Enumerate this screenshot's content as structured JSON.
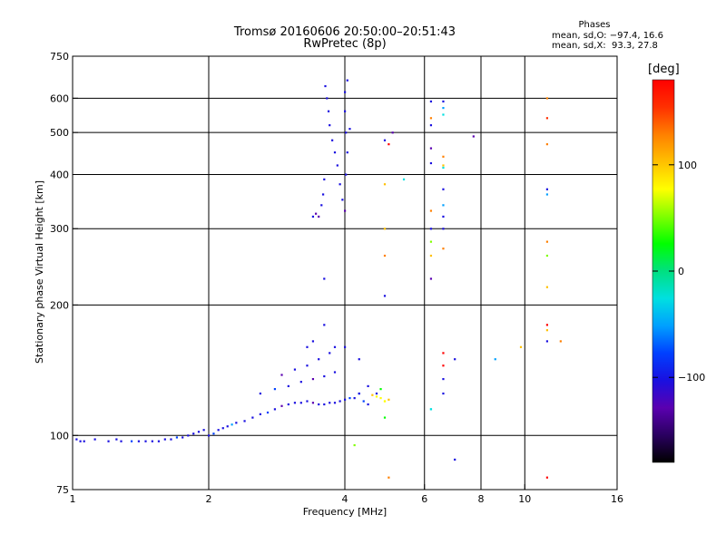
{
  "header": {
    "title_line1": "Tromsø 20160606 20:50:00–20:51:43",
    "title_line2": "RwPretec (8p)",
    "phases_title": "Phases",
    "phases_o": "mean, sd,O: −97.4, 16.6",
    "phases_x": "mean, sd,X:  93.3, 27.8"
  },
  "colorbar": {
    "title": "[deg]",
    "ticks": [
      "100",
      "0",
      "−100"
    ],
    "tick_values": [
      100,
      0,
      -100
    ],
    "range": [
      -180,
      180
    ],
    "colors": [
      "#000000",
      "#2a0060",
      "#5a00b0",
      "#1a10e0",
      "#0040ff",
      "#00a0ff",
      "#00e0e0",
      "#00e080",
      "#00ff00",
      "#80ff00",
      "#ffff00",
      "#ffc000",
      "#ff8000",
      "#ff3000",
      "#ff0000"
    ]
  },
  "chart_data": {
    "type": "scatter",
    "xlabel": "Frequency [MHz]",
    "ylabel": "Stationary phase Virtual Height [km]",
    "x_scale": "log",
    "y_scale": "log",
    "xlim": [
      1,
      16
    ],
    "ylim": [
      75,
      750
    ],
    "x_ticks": [
      1,
      2,
      4,
      8,
      16
    ],
    "x_minor_ticks": [
      6,
      10
    ],
    "y_ticks": [
      75,
      100,
      200,
      300,
      400,
      500,
      600,
      750
    ],
    "grid": true,
    "grid_verticals": [
      2,
      4,
      6,
      8,
      10
    ],
    "grid_horizontals": [
      100,
      200,
      300,
      400,
      500,
      600
    ],
    "series": [
      {
        "points": [
          [
            1.02,
            98,
            -110
          ],
          [
            1.04,
            97,
            -100
          ],
          [
            1.06,
            97,
            -95
          ],
          [
            1.12,
            98,
            -105
          ],
          [
            1.2,
            97,
            -110
          ],
          [
            1.25,
            98,
            -100
          ],
          [
            1.28,
            97,
            -115
          ],
          [
            1.35,
            97,
            -90
          ],
          [
            1.4,
            97,
            -100
          ],
          [
            1.45,
            97,
            -108
          ],
          [
            1.5,
            97,
            -95
          ],
          [
            1.55,
            97,
            -105
          ],
          [
            1.6,
            98,
            -100
          ],
          [
            1.65,
            98,
            -110
          ],
          [
            1.7,
            99,
            -90
          ],
          [
            1.75,
            99,
            -100
          ],
          [
            1.8,
            100,
            -105
          ],
          [
            1.85,
            101,
            -95
          ],
          [
            1.9,
            102,
            -100
          ],
          [
            1.95,
            103,
            -115
          ],
          [
            2.0,
            100,
            -100
          ],
          [
            2.05,
            101,
            -80
          ],
          [
            2.1,
            103,
            -100
          ],
          [
            2.15,
            104,
            -105
          ],
          [
            2.2,
            105,
            -95
          ],
          [
            2.25,
            106,
            -60
          ],
          [
            2.3,
            107,
            -100
          ],
          [
            2.4,
            108,
            -110
          ],
          [
            2.5,
            110,
            -95
          ],
          [
            2.6,
            112,
            -100
          ],
          [
            2.7,
            113,
            -70
          ],
          [
            2.8,
            115,
            -105
          ],
          [
            2.9,
            117,
            -130
          ],
          [
            3.0,
            118,
            -100
          ],
          [
            3.1,
            119,
            -110
          ],
          [
            3.2,
            119,
            -95
          ],
          [
            3.3,
            120,
            -100
          ],
          [
            3.4,
            119,
            -130
          ],
          [
            3.5,
            118,
            -100
          ],
          [
            3.6,
            118,
            -110
          ],
          [
            3.7,
            119,
            -95
          ],
          [
            3.8,
            119,
            -100
          ],
          [
            3.9,
            120,
            -105
          ],
          [
            4.0,
            121,
            -95
          ],
          [
            4.1,
            122,
            -90
          ],
          [
            4.2,
            122,
            -100
          ],
          [
            4.3,
            125,
            -80
          ],
          [
            2.6,
            125,
            -100
          ],
          [
            2.8,
            128,
            -70
          ],
          [
            3.0,
            130,
            -110
          ],
          [
            3.2,
            133,
            -100
          ],
          [
            3.4,
            135,
            -120
          ],
          [
            3.6,
            137,
            -100
          ],
          [
            3.8,
            140,
            -95
          ],
          [
            2.9,
            138,
            -130
          ],
          [
            3.1,
            142,
            -100
          ],
          [
            3.3,
            145,
            -110
          ],
          [
            3.5,
            150,
            -95
          ],
          [
            3.7,
            155,
            -100
          ],
          [
            3.6,
            180,
            -100
          ],
          [
            3.3,
            160,
            -95
          ],
          [
            3.4,
            165,
            -100
          ],
          [
            3.8,
            160,
            -110
          ],
          [
            4.0,
            160,
            -100
          ],
          [
            4.3,
            150,
            -100
          ],
          [
            4.0,
            330,
            -120
          ],
          [
            3.95,
            350,
            -100
          ],
          [
            3.9,
            380,
            -110
          ],
          [
            3.85,
            420,
            -100
          ],
          [
            3.8,
            450,
            -105
          ],
          [
            3.75,
            480,
            -110
          ],
          [
            3.7,
            520,
            -100
          ],
          [
            3.68,
            560,
            -95
          ],
          [
            3.65,
            600,
            -100
          ],
          [
            3.62,
            640,
            -110
          ],
          [
            3.5,
            320,
            -130
          ],
          [
            3.55,
            340,
            -110
          ],
          [
            3.58,
            360,
            -100
          ],
          [
            3.6,
            390,
            -95
          ],
          [
            3.45,
            325,
            -120
          ],
          [
            3.4,
            320,
            -110
          ],
          [
            4.02,
            400,
            -100
          ],
          [
            4.05,
            450,
            -100
          ],
          [
            4.02,
            500,
            -110
          ],
          [
            4.0,
            560,
            -100
          ],
          [
            4.0,
            620,
            -100
          ],
          [
            4.05,
            660,
            -100
          ],
          [
            3.6,
            230,
            -100
          ],
          [
            4.9,
            120,
            80
          ],
          [
            5.0,
            121,
            90
          ],
          [
            4.8,
            122,
            85
          ],
          [
            4.7,
            123,
            75
          ],
          [
            4.6,
            124,
            90
          ],
          [
            4.5,
            118,
            -100
          ],
          [
            4.4,
            120,
            -80
          ],
          [
            4.3,
            125,
            -100
          ],
          [
            4.7,
            125,
            -110
          ],
          [
            4.2,
            95,
            60
          ],
          [
            4.5,
            130,
            -100
          ],
          [
            4.9,
            380,
            110
          ],
          [
            4.9,
            260,
            120
          ],
          [
            4.9,
            300,
            95
          ],
          [
            4.9,
            210,
            -110
          ],
          [
            4.9,
            480,
            -110
          ],
          [
            4.9,
            120,
            80
          ],
          [
            4.9,
            110,
            20
          ],
          [
            4.8,
            128,
            30
          ],
          [
            5.0,
            470,
            170
          ],
          [
            5.1,
            500,
            -120
          ],
          [
            5.0,
            80,
            130
          ],
          [
            6.2,
            590,
            -110
          ],
          [
            6.2,
            540,
            120
          ],
          [
            6.2,
            520,
            -100
          ],
          [
            6.2,
            460,
            -120
          ],
          [
            6.2,
            425,
            -100
          ],
          [
            6.2,
            330,
            130
          ],
          [
            6.2,
            300,
            -100
          ],
          [
            6.2,
            280,
            60
          ],
          [
            6.2,
            260,
            110
          ],
          [
            6.2,
            230,
            -120
          ],
          [
            6.2,
            115,
            -30
          ],
          [
            6.2,
            115,
            -20
          ],
          [
            6.6,
            590,
            -110
          ],
          [
            6.6,
            570,
            -40
          ],
          [
            6.6,
            550,
            -30
          ],
          [
            6.6,
            440,
            140
          ],
          [
            6.6,
            420,
            110
          ],
          [
            6.6,
            415,
            -30
          ],
          [
            6.6,
            370,
            -100
          ],
          [
            6.6,
            340,
            -60
          ],
          [
            6.6,
            320,
            -100
          ],
          [
            6.6,
            300,
            -110
          ],
          [
            6.6,
            270,
            140
          ],
          [
            6.6,
            155,
            170
          ],
          [
            6.6,
            145,
            170
          ],
          [
            6.6,
            135,
            -100
          ],
          [
            6.6,
            125,
            -110
          ],
          [
            7.0,
            150,
            -100
          ],
          [
            7.0,
            88,
            -110
          ],
          [
            7.7,
            490,
            -120
          ],
          [
            8.6,
            150,
            -50
          ],
          [
            9.8,
            160,
            100
          ],
          [
            11.2,
            600,
            130
          ],
          [
            11.2,
            540,
            150
          ],
          [
            11.2,
            470,
            120
          ],
          [
            11.2,
            370,
            -110
          ],
          [
            11.2,
            360,
            -60
          ],
          [
            11.2,
            280,
            140
          ],
          [
            11.2,
            260,
            40
          ],
          [
            11.2,
            220,
            100
          ],
          [
            11.2,
            180,
            170
          ],
          [
            11.2,
            175,
            100
          ],
          [
            11.2,
            165,
            -100
          ],
          [
            11.2,
            80,
            170
          ],
          [
            12.0,
            165,
            120
          ],
          [
            5.4,
            390,
            -30
          ],
          [
            4.1,
            510,
            -110
          ]
        ]
      }
    ]
  }
}
